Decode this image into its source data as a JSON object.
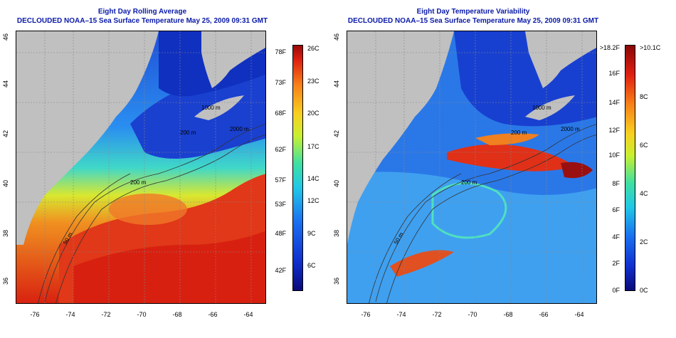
{
  "left_panel": {
    "title_line1": "Eight Day Rolling Average",
    "title_line2": "DECLOUDED NOAA–15 Sea Surface Temperature May 25, 2009 09:31 GMT",
    "y_ticks": [
      "46",
      "44",
      "42",
      "40",
      "38",
      "36"
    ],
    "x_ticks": [
      "-76",
      "-74",
      "-72",
      "-70",
      "-68",
      "-66",
      "-64"
    ],
    "contour_labels": [
      "200 m",
      "2000 m",
      "50 m",
      "200 m",
      "1000 m"
    ],
    "colorbar": {
      "left_labels": [
        "78F",
        "73F",
        "68F",
        "62F",
        "57F",
        "53F",
        "48F",
        "42F"
      ],
      "right_labels": [
        "26C",
        "23C",
        "20C",
        "17C",
        "14C",
        "12C",
        "9C",
        "6C"
      ]
    }
  },
  "right_panel": {
    "title_line1": "Eight Day Temperature Variability",
    "title_line2": "DECLOUDED NOAA–15 Sea Surface Temperature May 25, 2009 09:31 GMT",
    "y_ticks": [
      "46",
      "44",
      "42",
      "40",
      "38",
      "36"
    ],
    "x_ticks": [
      "-76",
      "-74",
      "-72",
      "-70",
      "-68",
      "-66",
      "-64"
    ],
    "contour_labels": [
      "200 m",
      "2000 m",
      "50 m",
      "200 m",
      "1000 m"
    ],
    "colorbar": {
      "left_labels": [
        ">18.2F",
        "16F",
        "14F",
        "12F",
        "10F",
        "8F",
        "6F",
        "4F",
        "2F",
        "0F"
      ],
      "right_labels": [
        ">10.1C",
        "8C",
        "6C",
        "4C",
        "2C",
        "0C"
      ]
    }
  },
  "colors": {
    "title": "#0a1aa8",
    "land": "#c0c0c0",
    "warm": "#d82010",
    "cold": "#1a50e0"
  }
}
